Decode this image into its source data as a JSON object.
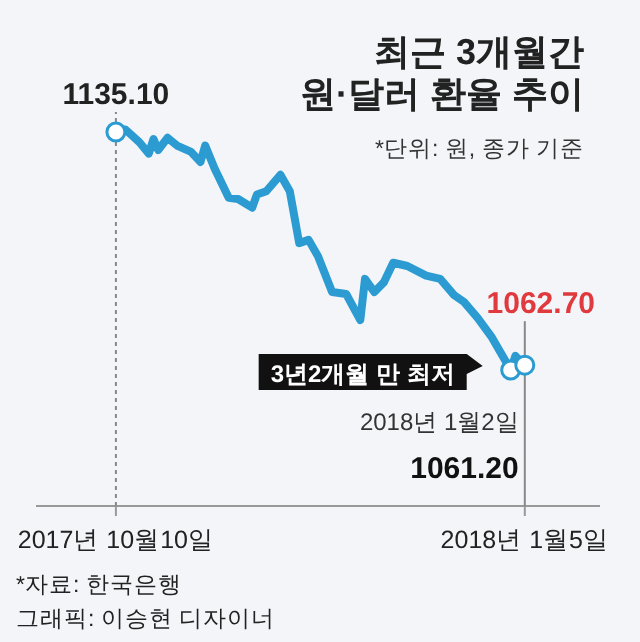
{
  "chart_data": {
    "type": "line",
    "title": "최근 3개월간\n원·달러 환율 추이",
    "subtitle": "*단위: 원, 종가 기준",
    "x": [
      "2017-10-10",
      "2017-10-12",
      "2017-10-15",
      "2017-10-17",
      "2017-10-18",
      "2017-10-19",
      "2017-10-21",
      "2017-10-23",
      "2017-10-26",
      "2017-10-28",
      "2017-10-29",
      "2017-10-31",
      "2017-11-03",
      "2017-11-05",
      "2017-11-08",
      "2017-11-09",
      "2017-11-11",
      "2017-11-14",
      "2017-11-16",
      "2017-11-18",
      "2017-11-20",
      "2017-11-22",
      "2017-11-25",
      "2017-11-28",
      "2017-12-01",
      "2017-12-02",
      "2017-12-04",
      "2017-12-06",
      "2017-12-08",
      "2017-12-11",
      "2017-12-15",
      "2017-12-18",
      "2017-12-21",
      "2017-12-23",
      "2017-12-26",
      "2017-12-29",
      "2018-01-02",
      "2018-01-03",
      "2018-01-04",
      "2018-01-05"
    ],
    "series": [
      {
        "color": "#2b9bd1",
        "values": [
          1135.1,
          1135.9,
          1131.9,
          1128.4,
          1132.9,
          1129.5,
          1133.3,
          1130.9,
          1128.9,
          1125.8,
          1130.9,
          1123.8,
          1114.7,
          1114.3,
          1111.6,
          1115.7,
          1116.7,
          1121.8,
          1116.7,
          1100.6,
          1101.6,
          1096.5,
          1085.4,
          1084.8,
          1076.7,
          1089.5,
          1085.4,
          1088.4,
          1094.5,
          1093.5,
          1090.5,
          1089.5,
          1084.4,
          1082.4,
          1077.3,
          1071.3,
          1061.2,
          1065.6,
          1064.0,
          1062.7
        ],
        "value_labels": [
          "1135.10",
          null,
          null,
          null,
          null,
          null,
          null,
          null,
          null,
          null,
          null,
          null,
          null,
          null,
          null,
          null,
          null,
          null,
          null,
          null,
          null,
          null,
          null,
          null,
          null,
          null,
          null,
          null,
          null,
          null,
          null,
          null,
          null,
          null,
          null,
          null,
          "1061.20",
          null,
          null,
          "1062.70"
        ]
      }
    ],
    "xlim": [
      "2017-09-23",
      "2018-01-21"
    ],
    "xticks": [
      {
        "value": "2017-10-10",
        "label": "2017년 10월10일"
      },
      {
        "value": "2018-01-05",
        "label": "2018년 1월5일"
      }
    ],
    "tick_labels": "x",
    "ref_lines": [
      {
        "axis": "x",
        "value": "2017-10-10",
        "line_style": "dashed",
        "color": "#888888"
      },
      {
        "axis": "x",
        "value": "2018-01-05",
        "line_style": "solid",
        "color": "#888888"
      }
    ],
    "annotations": [
      {
        "text": "3년2개월 만 최저",
        "x": "2018-01-02",
        "y": 1061.2
      },
      {
        "text": "2018년 1월2일",
        "x": "2018-01-02",
        "y": 1061.2
      },
      "*자료: 한국은행",
      "그래픽: 이승현 디자이너"
    ]
  }
}
